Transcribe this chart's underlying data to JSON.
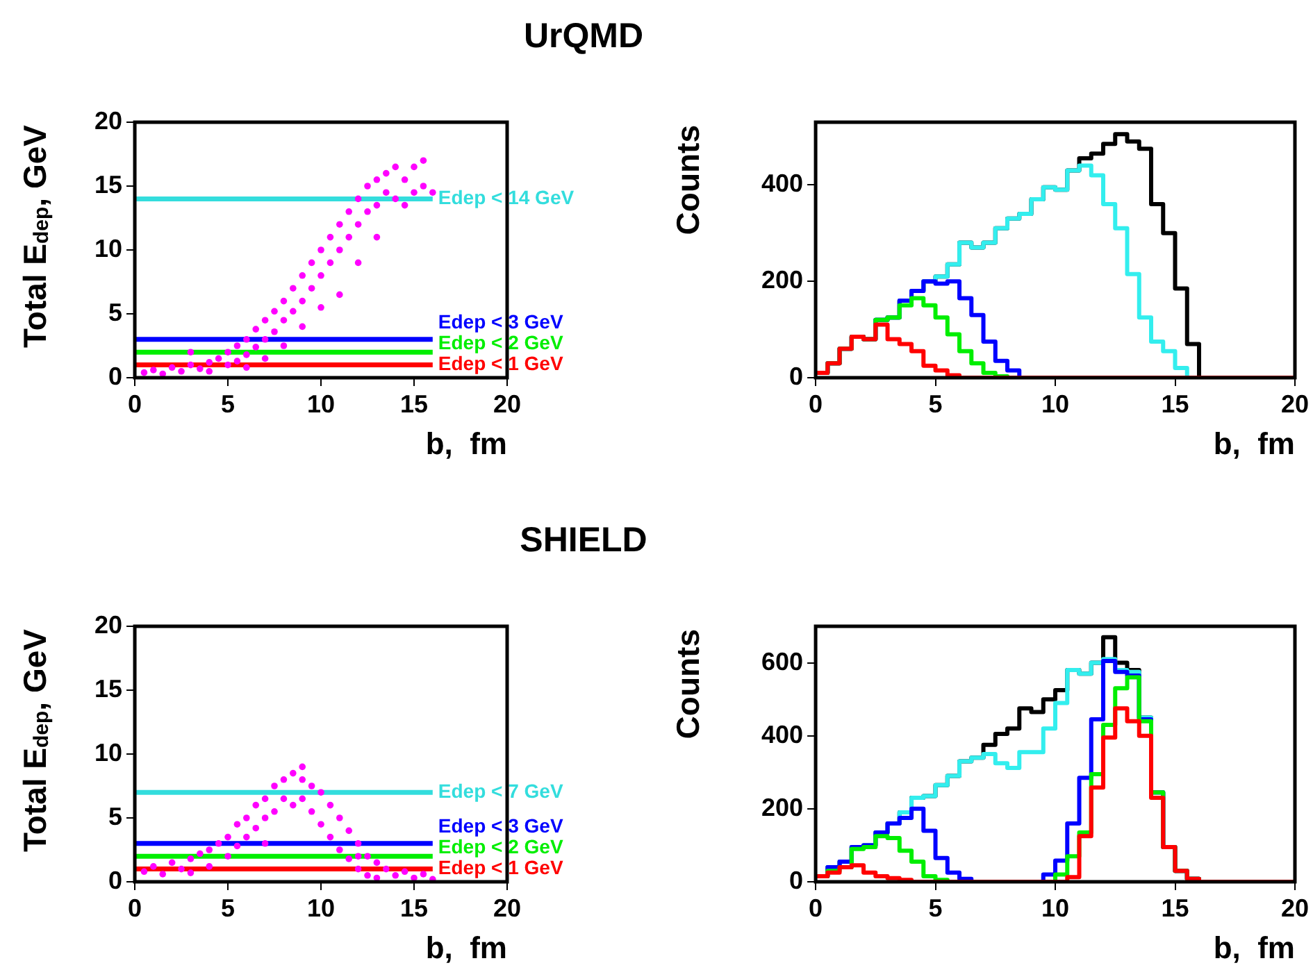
{
  "chart_data": [
    {
      "type": "scatter",
      "title": "UrQMD",
      "xlabel": "b,  fm",
      "ylabel": "Total E$_{dep}$, GeV",
      "xlim": [
        0,
        20
      ],
      "xticks": [
        0,
        5,
        10,
        15,
        20
      ],
      "ylim": [
        0,
        20
      ],
      "yticks": [
        0,
        5,
        10,
        15,
        20
      ],
      "marker": "circle",
      "series": [
        {
          "color": "#ff00ff",
          "x": [
            0.5,
            1,
            1.5,
            2,
            2.5,
            3,
            3.5,
            4,
            4,
            4.5,
            5,
            5,
            5.5,
            5.5,
            6,
            6,
            6.5,
            6.5,
            7,
            7,
            7.5,
            7.5,
            8,
            8,
            8.5,
            8.5,
            9,
            9,
            9.5,
            9.5,
            10,
            10,
            10.5,
            10.5,
            11,
            11,
            11.5,
            11.5,
            12,
            12,
            12.5,
            12.5,
            13,
            13,
            13.5,
            13.5,
            14,
            14,
            14.5,
            14.5,
            15,
            15,
            15.5,
            15.5,
            16,
            11,
            12,
            8,
            6,
            3,
            7,
            10,
            13,
            9
          ],
          "values": [
            0.4,
            0.6,
            0.3,
            0.8,
            0.5,
            1.0,
            0.7,
            1.2,
            0.5,
            1.5,
            1.0,
            2.0,
            2.5,
            1.3,
            3.0,
            1.8,
            3.8,
            2.4,
            4.5,
            3.0,
            5.2,
            3.6,
            6.0,
            4.5,
            7.0,
            5.2,
            8.0,
            6.0,
            9.0,
            7.0,
            10.0,
            8.0,
            11.0,
            9.0,
            12.0,
            10.0,
            13.0,
            11.0,
            14.0,
            12.0,
            15.0,
            13.0,
            15.5,
            13.5,
            16.0,
            14.5,
            16.5,
            14.0,
            15.5,
            13.5,
            16.5,
            14.5,
            15.0,
            17.0,
            14.5,
            6.5,
            9.0,
            2.5,
            0.8,
            2.0,
            1.5,
            5.5,
            11.0,
            4.0
          ]
        }
      ],
      "ref_lines": [
        {
          "axis": "y",
          "value": 14,
          "label": "Edep < 14 GeV",
          "color": "#33dddd"
        },
        {
          "axis": "y",
          "value": 3,
          "label": "Edep < 3 GeV",
          "color": "#0000ff"
        },
        {
          "axis": "y",
          "value": 2,
          "label": "Edep < 2 GeV",
          "color": "#00ee00"
        },
        {
          "axis": "y",
          "value": 1,
          "label": "Edep < 1 GeV",
          "color": "#ff0000"
        }
      ]
    },
    {
      "type": "histogram",
      "xlabel": "b,  fm",
      "ylabel": "Counts",
      "xlim": [
        0,
        20
      ],
      "xticks": [
        0,
        5,
        10,
        15,
        20
      ],
      "ylim": [
        0,
        530
      ],
      "yticks": [
        0,
        200,
        400
      ],
      "bins": [
        0,
        0.5,
        1,
        1.5,
        2,
        2.5,
        3,
        3.5,
        4,
        4.5,
        5,
        5.5,
        6,
        6.5,
        7,
        7.5,
        8,
        8.5,
        9,
        9.5,
        10,
        10.5,
        11,
        11.5,
        12,
        12.5,
        13,
        13.5,
        14,
        14.5,
        15,
        15.5,
        16,
        16.5,
        17,
        17.5,
        18,
        18.5,
        19,
        19.5,
        20
      ],
      "series": [
        {
          "color": "#ff0000",
          "values": [
            10,
            30,
            60,
            85,
            80,
            110,
            80,
            70,
            55,
            25,
            15,
            5,
            0,
            0,
            0,
            0,
            0,
            0,
            0,
            0,
            0,
            0,
            0,
            0,
            0,
            0,
            0,
            0,
            0,
            0,
            0,
            0,
            0,
            0,
            0,
            0,
            0,
            0,
            0,
            0
          ]
        },
        {
          "color": "#00ee00",
          "values": [
            10,
            30,
            60,
            85,
            80,
            120,
            125,
            150,
            165,
            150,
            125,
            90,
            55,
            30,
            10,
            3,
            0,
            0,
            0,
            0,
            0,
            0,
            0,
            0,
            0,
            0,
            0,
            0,
            0,
            0,
            0,
            0,
            0,
            0,
            0,
            0,
            0,
            0,
            0,
            0
          ]
        },
        {
          "color": "#0000ff",
          "values": [
            10,
            30,
            60,
            85,
            80,
            120,
            125,
            160,
            180,
            200,
            195,
            200,
            165,
            130,
            75,
            35,
            15,
            0,
            0,
            0,
            0,
            0,
            0,
            0,
            0,
            0,
            0,
            0,
            0,
            0,
            0,
            0,
            0,
            0,
            0,
            0,
            0,
            0,
            0,
            0
          ]
        },
        {
          "color": "#33eeee",
          "values": [
            10,
            30,
            60,
            85,
            80,
            120,
            125,
            160,
            180,
            200,
            210,
            235,
            280,
            270,
            280,
            310,
            330,
            340,
            370,
            395,
            390,
            430,
            440,
            420,
            360,
            310,
            215,
            125,
            75,
            55,
            20,
            0,
            0,
            0,
            0,
            0,
            0,
            0,
            0,
            0
          ]
        },
        {
          "color": "#000000",
          "values": [
            10,
            30,
            60,
            85,
            80,
            120,
            125,
            160,
            180,
            200,
            210,
            235,
            280,
            270,
            280,
            310,
            330,
            340,
            370,
            395,
            390,
            430,
            455,
            465,
            485,
            505,
            490,
            475,
            360,
            300,
            185,
            70,
            0,
            0,
            0,
            0,
            0,
            0,
            0,
            0
          ]
        }
      ]
    },
    {
      "type": "scatter",
      "title": "SHIELD",
      "xlabel": "b,  fm",
      "ylabel": "Total E$_{dep}$, GeV",
      "xlim": [
        0,
        20
      ],
      "xticks": [
        0,
        5,
        10,
        15,
        20
      ],
      "ylim": [
        0,
        20
      ],
      "yticks": [
        0,
        5,
        10,
        15,
        20
      ],
      "marker": "circle",
      "series": [
        {
          "color": "#ff00ff",
          "x": [
            0.5,
            1,
            1.5,
            2,
            2.5,
            3,
            3,
            3.5,
            4,
            4,
            4.5,
            5,
            5,
            5.5,
            5.5,
            6,
            6,
            6.5,
            6.5,
            7,
            7,
            7.5,
            7.5,
            8,
            8,
            8.5,
            8.5,
            9,
            9,
            9.5,
            9.5,
            10,
            10,
            10.5,
            10.5,
            11,
            11,
            11.5,
            11.5,
            12,
            12,
            12.5,
            12.5,
            13,
            13,
            13.5,
            14,
            14.5,
            15,
            15.5,
            16,
            9,
            7,
            12
          ],
          "values": [
            0.8,
            1.2,
            0.6,
            1.5,
            1.0,
            1.8,
            0.7,
            2.2,
            2.5,
            1.2,
            3.0,
            3.5,
            2.0,
            4.5,
            2.8,
            5.0,
            3.5,
            6.0,
            4.2,
            6.5,
            5.0,
            7.5,
            5.5,
            8.0,
            6.5,
            8.5,
            6.0,
            8.0,
            6.5,
            7.5,
            5.5,
            7.0,
            4.5,
            6.0,
            3.5,
            5.0,
            2.5,
            4.0,
            1.8,
            3.0,
            1.0,
            2.0,
            0.5,
            1.5,
            0.3,
            1.0,
            0.5,
            0.8,
            0.3,
            0.6,
            0.2,
            9.0,
            3.0,
            2.0
          ]
        }
      ],
      "ref_lines": [
        {
          "axis": "y",
          "value": 7,
          "label": "Edep < 7 GeV",
          "color": "#33dddd"
        },
        {
          "axis": "y",
          "value": 3,
          "label": "Edep < 3 GeV",
          "color": "#0000ff"
        },
        {
          "axis": "y",
          "value": 2,
          "label": "Edep < 2 GeV",
          "color": "#00ee00"
        },
        {
          "axis": "y",
          "value": 1,
          "label": "Edep < 1 GeV",
          "color": "#ff0000"
        }
      ]
    },
    {
      "type": "histogram",
      "xlabel": "b,  fm",
      "ylabel": "Counts",
      "xlim": [
        0,
        20
      ],
      "xticks": [
        0,
        5,
        10,
        15,
        20
      ],
      "ylim": [
        0,
        700
      ],
      "yticks": [
        0,
        200,
        400,
        600
      ],
      "bins": [
        0,
        0.5,
        1,
        1.5,
        2,
        2.5,
        3,
        3.5,
        4,
        4.5,
        5,
        5.5,
        6,
        6.5,
        7,
        7.5,
        8,
        8.5,
        9,
        9.5,
        10,
        10.5,
        11,
        11.5,
        12,
        12.5,
        13,
        13.5,
        14,
        14.5,
        15,
        15.5,
        16,
        16.5,
        17,
        17.5,
        18,
        18.5,
        19,
        19.5,
        20
      ],
      "series": [
        {
          "color": "#ff0000",
          "values": [
            15,
            25,
            40,
            45,
            25,
            15,
            10,
            5,
            0,
            0,
            0,
            0,
            0,
            0,
            0,
            0,
            0,
            0,
            0,
            0,
            0,
            13,
            125,
            258,
            395,
            475,
            440,
            400,
            230,
            95,
            30,
            8,
            0,
            0,
            0,
            0,
            0,
            0,
            0,
            0
          ]
        },
        {
          "color": "#00ee00",
          "values": [
            15,
            30,
            40,
            90,
            95,
            125,
            120,
            85,
            55,
            15,
            5,
            0,
            0,
            0,
            0,
            0,
            0,
            0,
            0,
            0,
            20,
            70,
            135,
            295,
            430,
            530,
            560,
            440,
            245,
            95,
            30,
            8,
            0,
            0,
            0,
            0,
            0,
            0,
            0,
            0
          ]
        },
        {
          "color": "#0000ff",
          "values": [
            15,
            40,
            55,
            95,
            100,
            135,
            160,
            175,
            200,
            140,
            65,
            25,
            8,
            0,
            0,
            0,
            0,
            0,
            0,
            20,
            58,
            160,
            285,
            445,
            605,
            575,
            565,
            445,
            245,
            95,
            30,
            8,
            0,
            0,
            0,
            0,
            0,
            0,
            0,
            0
          ]
        },
        {
          "color": "#33eeee",
          "values": [
            15,
            40,
            55,
            95,
            100,
            135,
            160,
            190,
            230,
            235,
            265,
            290,
            330,
            340,
            350,
            325,
            312,
            355,
            355,
            420,
            490,
            580,
            570,
            600,
            610,
            580,
            575,
            450,
            245,
            95,
            30,
            8,
            0,
            0,
            0,
            0,
            0,
            0,
            0,
            0
          ]
        },
        {
          "color": "#000000",
          "values": [
            15,
            40,
            55,
            95,
            100,
            135,
            160,
            190,
            230,
            235,
            265,
            290,
            330,
            340,
            375,
            405,
            420,
            475,
            465,
            500,
            525,
            580,
            570,
            600,
            670,
            600,
            580,
            450,
            245,
            95,
            30,
            8,
            0,
            0,
            0,
            0,
            0,
            0,
            0,
            0
          ]
        }
      ]
    }
  ]
}
